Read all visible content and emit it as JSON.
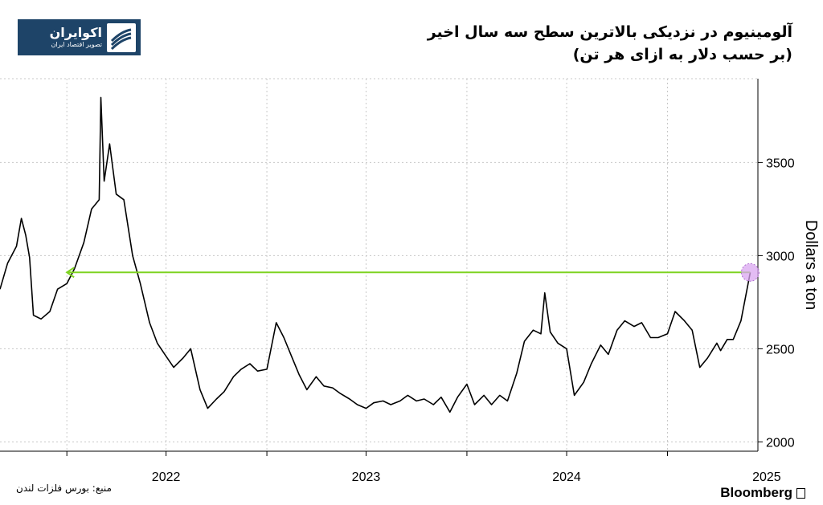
{
  "header": {
    "title_line1": "آلومینیوم در نزدیکی بالاترین سطح سه سال اخیر",
    "title_line2": "(بر حسب دلار به ازای هر تن)"
  },
  "logo": {
    "name": "اکوایران",
    "tagline": "تصویر اقتصاد ایران",
    "icon": "ecoiran-logo-icon"
  },
  "footer": {
    "source": "منبع: بورس فلزات لندن",
    "brand": "Bloomberg",
    "brand_icon": "bloomberg-bars-icon"
  },
  "colors": {
    "line": "#000000",
    "arrow": "#7ed321",
    "marker": "#d9a5f0",
    "grid": "#c8c8c8",
    "logo_bg": "#1e4468"
  },
  "chart_data": {
    "type": "line",
    "title": "آلومینیوم در نزدیکی بالاترین سطح سه سال اخیر",
    "subtitle": "(بر حسب دلار به ازای هر تن)",
    "ylabel": "Dollars a ton",
    "xlabel": "",
    "ylim": [
      1950,
      3950
    ],
    "yticks": [
      2000,
      2500,
      3000,
      3500
    ],
    "xticks": [
      "2022",
      "2023",
      "2024",
      "2025"
    ],
    "xlim": [
      "2021-09-01",
      "2025-06-15"
    ],
    "grid": "vertical dotted",
    "axis_side": "right",
    "series": [
      {
        "x": [
          "2021-09-01",
          "2021-09-15",
          "2021-10-01",
          "2021-10-10",
          "2021-10-18",
          "2021-10-25",
          "2021-11-01",
          "2021-11-15",
          "2021-12-01",
          "2021-12-15",
          "2022-01-01",
          "2022-01-15",
          "2022-02-01",
          "2022-02-15",
          "2022-03-01",
          "2022-03-04",
          "2022-03-10",
          "2022-03-20",
          "2022-04-01",
          "2022-04-15",
          "2022-05-01",
          "2022-05-15",
          "2022-06-01",
          "2022-06-15",
          "2022-07-01",
          "2022-07-15",
          "2022-08-01",
          "2022-08-15",
          "2022-09-01",
          "2022-09-15",
          "2022-10-01",
          "2022-10-15",
          "2022-11-01",
          "2022-11-15",
          "2022-12-01",
          "2022-12-15",
          "2023-01-01",
          "2023-01-18",
          "2023-02-01",
          "2023-02-15",
          "2023-03-01",
          "2023-03-15",
          "2023-04-01",
          "2023-04-15",
          "2023-05-01",
          "2023-05-15",
          "2023-06-01",
          "2023-06-15",
          "2023-07-01",
          "2023-07-15",
          "2023-08-01",
          "2023-08-15",
          "2023-09-01",
          "2023-09-15",
          "2023-10-01",
          "2023-10-15",
          "2023-11-01",
          "2023-11-15",
          "2023-12-01",
          "2023-12-15",
          "2024-01-01",
          "2024-01-15",
          "2024-02-01",
          "2024-02-15",
          "2024-03-01",
          "2024-03-15",
          "2024-04-01",
          "2024-04-15",
          "2024-05-01",
          "2024-05-15",
          "2024-05-22",
          "2024-06-01",
          "2024-06-15",
          "2024-07-01",
          "2024-07-15",
          "2024-08-01",
          "2024-08-15",
          "2024-09-01",
          "2024-09-15",
          "2024-10-01",
          "2024-10-15",
          "2024-11-01",
          "2024-11-15",
          "2024-12-01",
          "2024-12-15",
          "2025-01-01",
          "2025-01-15",
          "2025-02-01",
          "2025-02-15",
          "2025-03-01",
          "2025-03-15",
          "2025-04-01",
          "2025-04-08",
          "2025-04-20",
          "2025-05-01",
          "2025-05-15",
          "2025-06-01"
        ],
        "values": [
          2820,
          2960,
          3050,
          3200,
          3110,
          2990,
          2680,
          2660,
          2700,
          2820,
          2850,
          2930,
          3070,
          3250,
          3300,
          3849,
          3400,
          3600,
          3330,
          3300,
          3000,
          2850,
          2640,
          2530,
          2460,
          2400,
          2450,
          2500,
          2280,
          2180,
          2230,
          2270,
          2350,
          2390,
          2420,
          2380,
          2390,
          2640,
          2560,
          2460,
          2360,
          2280,
          2350,
          2300,
          2290,
          2260,
          2230,
          2200,
          2180,
          2210,
          2220,
          2200,
          2220,
          2250,
          2220,
          2230,
          2200,
          2240,
          2160,
          2240,
          2310,
          2200,
          2250,
          2200,
          2250,
          2220,
          2370,
          2540,
          2600,
          2580,
          2800,
          2590,
          2530,
          2500,
          2250,
          2320,
          2420,
          2520,
          2470,
          2600,
          2650,
          2620,
          2640,
          2560,
          2560,
          2580,
          2700,
          2650,
          2600,
          2400,
          2450,
          2530,
          2490,
          2550,
          2550,
          2650,
          2910
        ]
      }
    ],
    "annotations": [
      {
        "type": "arrow",
        "color": "green",
        "from_date": "2025-06-01",
        "to_date": "2022-01-01",
        "value": 2910
      },
      {
        "type": "marker",
        "color": "purple",
        "date": "2025-06-01",
        "value": 2910
      }
    ]
  }
}
